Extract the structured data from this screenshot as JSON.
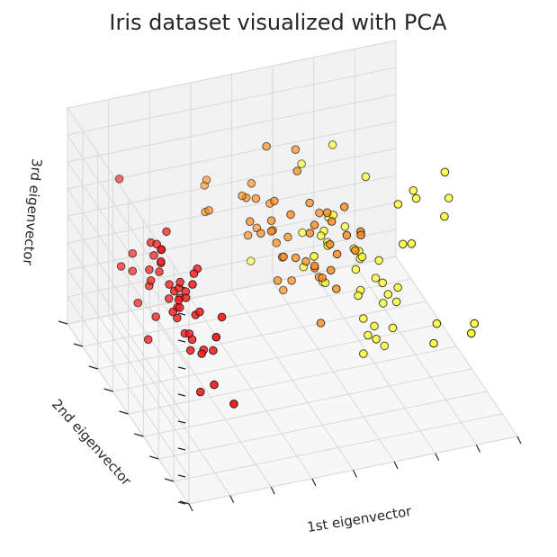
{
  "chart_data": {
    "type": "scatter",
    "projection": "3d",
    "title": "Iris dataset visualized with PCA",
    "xlabel": "1st eigenvector",
    "ylabel": "2nd eigenvector",
    "zlabel": "3rd eigenvector",
    "grid": true,
    "legend": "none",
    "colormap": "autumn",
    "colors": {
      "class_0": "#ff1a1a",
      "class_1": "#ff8c1a",
      "class_2": "#ffff33"
    },
    "tick_labels_shown": false,
    "points_note": "Each point: x=1st eigenvector, y=2nd eigenvector, z=3rd eigenvector, class index 0/1/2",
    "points": [
      {
        "x": -2.68,
        "y": 0.32,
        "z": 0.03,
        "c": 0
      },
      {
        "x": -2.71,
        "y": -0.18,
        "z": 0.21,
        "c": 0
      },
      {
        "x": -2.89,
        "y": -0.14,
        "z": -0.02,
        "c": 0
      },
      {
        "x": -2.75,
        "y": -0.32,
        "z": -0.03,
        "c": 0
      },
      {
        "x": -2.73,
        "y": 0.33,
        "z": -0.09,
        "c": 0
      },
      {
        "x": -2.28,
        "y": 0.74,
        "z": -0.17,
        "c": 0
      },
      {
        "x": -2.82,
        "y": -0.09,
        "z": -0.26,
        "c": 0
      },
      {
        "x": -2.63,
        "y": 0.16,
        "z": 0.02,
        "c": 0
      },
      {
        "x": -2.89,
        "y": -0.58,
        "z": -0.02,
        "c": 0
      },
      {
        "x": -2.67,
        "y": -0.11,
        "z": 0.2,
        "c": 0
      },
      {
        "x": -2.51,
        "y": 0.65,
        "z": 0.08,
        "c": 0
      },
      {
        "x": -2.61,
        "y": 0.01,
        "z": -0.1,
        "c": 0
      },
      {
        "x": -2.79,
        "y": -0.24,
        "z": 0.2,
        "c": 0
      },
      {
        "x": -3.23,
        "y": -0.51,
        "z": -0.06,
        "c": 0
      },
      {
        "x": -2.64,
        "y": 1.18,
        "z": 0.14,
        "c": 0
      },
      {
        "x": -2.38,
        "y": 1.34,
        "z": -0.28,
        "c": 0
      },
      {
        "x": -2.62,
        "y": 0.81,
        "z": -0.14,
        "c": 0
      },
      {
        "x": -2.65,
        "y": 0.31,
        "z": -0.03,
        "c": 0
      },
      {
        "x": -2.2,
        "y": 0.87,
        "z": 0.12,
        "c": 0
      },
      {
        "x": -2.59,
        "y": 0.51,
        "z": -0.25,
        "c": 0
      },
      {
        "x": -2.31,
        "y": 0.39,
        "z": 0.26,
        "c": 0
      },
      {
        "x": -2.54,
        "y": 0.43,
        "z": -0.17,
        "c": 0
      },
      {
        "x": -3.22,
        "y": 0.13,
        "z": -0.3,
        "c": 0
      },
      {
        "x": -2.3,
        "y": 0.1,
        "z": -0.03,
        "c": 0
      },
      {
        "x": -2.36,
        "y": -0.04,
        "z": -0.2,
        "c": 0
      },
      {
        "x": -2.51,
        "y": -0.15,
        "z": 0.3,
        "c": 0
      },
      {
        "x": -2.47,
        "y": 0.13,
        "z": -0.05,
        "c": 0
      },
      {
        "x": -2.56,
        "y": 0.37,
        "z": 0.06,
        "c": 0
      },
      {
        "x": -2.64,
        "y": 0.31,
        "z": 0.15,
        "c": 0
      },
      {
        "x": -2.63,
        "y": -0.2,
        "z": 0.0,
        "c": 0
      },
      {
        "x": -2.59,
        "y": -0.2,
        "z": 0.06,
        "c": 0
      },
      {
        "x": -2.41,
        "y": 0.41,
        "z": 0.24,
        "c": 0
      },
      {
        "x": -2.65,
        "y": 0.81,
        "z": -0.41,
        "c": 0
      },
      {
        "x": -2.6,
        "y": 1.09,
        "z": -0.24,
        "c": 0
      },
      {
        "x": -2.67,
        "y": -0.11,
        "z": 0.2,
        "c": 0
      },
      {
        "x": -2.87,
        "y": 0.08,
        "z": 0.21,
        "c": 0
      },
      {
        "x": -2.63,
        "y": 0.6,
        "z": 0.26,
        "c": 0
      },
      {
        "x": -2.67,
        "y": -0.11,
        "z": 0.2,
        "c": 0
      },
      {
        "x": -2.98,
        "y": -0.49,
        "z": -0.1,
        "c": 0
      },
      {
        "x": -2.59,
        "y": 0.23,
        "z": 0.07,
        "c": 0
      },
      {
        "x": -2.77,
        "y": 0.27,
        "z": -0.07,
        "c": 0
      },
      {
        "x": -2.85,
        "y": -0.94,
        "z": 0.35,
        "c": 0
      },
      {
        "x": -3.0,
        "y": -0.34,
        "z": -0.26,
        "c": 0
      },
      {
        "x": -2.41,
        "y": 0.19,
        "z": -0.28,
        "c": 0
      },
      {
        "x": -2.21,
        "y": 0.44,
        "z": -0.3,
        "c": 0
      },
      {
        "x": -2.71,
        "y": -0.25,
        "z": 0.1,
        "c": 0
      },
      {
        "x": -2.54,
        "y": 0.5,
        "z": -0.18,
        "c": 0
      },
      {
        "x": -2.84,
        "y": -0.23,
        "z": -0.1,
        "c": 0
      },
      {
        "x": -2.54,
        "y": 0.58,
        "z": 0.03,
        "c": 0
      },
      {
        "x": -2.7,
        "y": 0.11,
        "z": 0.05,
        "c": 0
      },
      {
        "x": 1.28,
        "y": 0.69,
        "z": 0.41,
        "c": 1
      },
      {
        "x": 0.93,
        "y": 0.32,
        "z": 0.02,
        "c": 1
      },
      {
        "x": 1.46,
        "y": 0.5,
        "z": 0.34,
        "c": 1
      },
      {
        "x": 0.18,
        "y": -0.83,
        "z": 0.18,
        "c": 1
      },
      {
        "x": 1.09,
        "y": 0.07,
        "z": 0.31,
        "c": 1
      },
      {
        "x": 0.64,
        "y": -0.42,
        "z": -0.05,
        "c": 1
      },
      {
        "x": 1.1,
        "y": 0.28,
        "z": -0.14,
        "c": 1
      },
      {
        "x": -0.75,
        "y": -1.0,
        "z": -0.04,
        "c": 1
      },
      {
        "x": 1.04,
        "y": 0.23,
        "z": 0.32,
        "c": 1
      },
      {
        "x": -0.01,
        "y": -0.72,
        "z": -0.13,
        "c": 1
      },
      {
        "x": -0.51,
        "y": -1.26,
        "z": 0.02,
        "c": 1
      },
      {
        "x": 0.51,
        "y": -0.1,
        "z": -0.05,
        "c": 1
      },
      {
        "x": 0.26,
        "y": -0.55,
        "z": 0.56,
        "c": 1
      },
      {
        "x": 0.98,
        "y": -0.12,
        "z": -0.16,
        "c": 1
      },
      {
        "x": -0.17,
        "y": -0.25,
        "z": 0.1,
        "c": 1
      },
      {
        "x": 0.93,
        "y": 0.47,
        "z": 0.2,
        "c": 1
      },
      {
        "x": 0.66,
        "y": -0.35,
        "z": -0.33,
        "c": 1
      },
      {
        "x": 0.23,
        "y": -0.33,
        "z": 0.27,
        "c": 1
      },
      {
        "x": 0.94,
        "y": -0.54,
        "z": 0.5,
        "c": 1
      },
      {
        "x": 0.04,
        "y": -0.58,
        "z": 0.19,
        "c": 1
      },
      {
        "x": 1.12,
        "y": -0.08,
        "z": -0.22,
        "c": 1
      },
      {
        "x": 0.36,
        "y": -0.07,
        "z": 0.28,
        "c": 1
      },
      {
        "x": 1.3,
        "y": -0.33,
        "z": 0.12,
        "c": 1
      },
      {
        "x": 0.92,
        "y": -0.18,
        "z": 0.28,
        "c": 1
      },
      {
        "x": 0.71,
        "y": 0.15,
        "z": 0.28,
        "c": 1
      },
      {
        "x": 0.9,
        "y": 0.33,
        "z": 0.21,
        "c": 1
      },
      {
        "x": 1.33,
        "y": 0.24,
        "z": 0.41,
        "c": 1
      },
      {
        "x": 1.56,
        "y": 0.27,
        "z": 0.1,
        "c": 1
      },
      {
        "x": 0.81,
        "y": -0.16,
        "z": -0.12,
        "c": 1
      },
      {
        "x": -0.31,
        "y": -0.37,
        "z": 0.14,
        "c": 1
      },
      {
        "x": -0.07,
        "y": -0.7,
        "z": 0.15,
        "c": 1
      },
      {
        "x": -0.19,
        "y": -0.68,
        "z": 0.18,
        "c": 1
      },
      {
        "x": 0.14,
        "y": -0.31,
        "z": 0.07,
        "c": 1
      },
      {
        "x": 1.38,
        "y": -0.42,
        "z": -0.38,
        "c": 1
      },
      {
        "x": 0.59,
        "y": -0.48,
        "z": -0.45,
        "c": 1
      },
      {
        "x": 0.81,
        "y": 0.2,
        "z": -0.4,
        "c": 1
      },
      {
        "x": 1.22,
        "y": 0.41,
        "z": 0.29,
        "c": 1
      },
      {
        "x": 0.81,
        "y": -0.37,
        "z": 0.43,
        "c": 1
      },
      {
        "x": 0.25,
        "y": -0.27,
        "z": -0.27,
        "c": 1
      },
      {
        "x": 0.16,
        "y": -0.68,
        "z": -0.07,
        "c": 1
      },
      {
        "x": 0.46,
        "y": -0.67,
        "z": 0.09,
        "c": 1
      },
      {
        "x": 0.89,
        "y": -0.03,
        "z": -0.1,
        "c": 1
      },
      {
        "x": 0.23,
        "y": -0.4,
        "z": 0.1,
        "c": 1
      },
      {
        "x": -0.71,
        "y": -1.01,
        "z": 0.18,
        "c": 1
      },
      {
        "x": 0.36,
        "y": -0.5,
        "z": -0.02,
        "c": 1
      },
      {
        "x": 0.33,
        "y": -0.21,
        "z": -0.08,
        "c": 1
      },
      {
        "x": 0.38,
        "y": -0.29,
        "z": -0.12,
        "c": 1
      },
      {
        "x": 0.64,
        "y": 0.11,
        "z": 0.21,
        "c": 1
      },
      {
        "x": -0.91,
        "y": -0.75,
        "z": 0.09,
        "c": 1
      },
      {
        "x": 0.3,
        "y": -0.35,
        "z": -0.04,
        "c": 1
      },
      {
        "x": 2.53,
        "y": -0.01,
        "z": -0.76,
        "c": 2
      },
      {
        "x": 1.41,
        "y": -0.57,
        "z": -0.3,
        "c": 2
      },
      {
        "x": 2.62,
        "y": 0.34,
        "z": 0.11,
        "c": 2
      },
      {
        "x": 1.97,
        "y": -0.18,
        "z": -0.11,
        "c": 2
      },
      {
        "x": 2.35,
        "y": -0.04,
        "z": -0.28,
        "c": 2
      },
      {
        "x": 3.4,
        "y": 0.55,
        "z": 0.35,
        "c": 2
      },
      {
        "x": 0.52,
        "y": -1.19,
        "z": -0.55,
        "c": 2
      },
      {
        "x": 2.93,
        "y": 0.35,
        "z": 0.42,
        "c": 2
      },
      {
        "x": 2.32,
        "y": -0.25,
        "z": 0.35,
        "c": 2
      },
      {
        "x": 2.92,
        "y": 0.78,
        "z": -0.42,
        "c": 2
      },
      {
        "x": 1.66,
        "y": 0.24,
        "z": -0.24,
        "c": 2
      },
      {
        "x": 1.8,
        "y": -0.22,
        "z": 0.04,
        "c": 2
      },
      {
        "x": 2.17,
        "y": 0.22,
        "z": -0.03,
        "c": 2
      },
      {
        "x": 1.34,
        "y": -0.78,
        "z": -0.22,
        "c": 2
      },
      {
        "x": 1.59,
        "y": -0.54,
        "z": -0.48,
        "c": 2
      },
      {
        "x": 1.9,
        "y": 0.12,
        "z": -0.47,
        "c": 2
      },
      {
        "x": 1.95,
        "y": 0.04,
        "z": -0.07,
        "c": 2
      },
      {
        "x": 3.49,
        "y": 1.18,
        "z": -0.14,
        "c": 2
      },
      {
        "x": 3.79,
        "y": 0.26,
        "z": 0.33,
        "c": 2
      },
      {
        "x": 1.3,
        "y": -0.76,
        "z": 0.28,
        "c": 2
      },
      {
        "x": 2.43,
        "y": 0.38,
        "z": -0.27,
        "c": 2
      },
      {
        "x": 1.2,
        "y": -0.61,
        "z": -0.38,
        "c": 2
      },
      {
        "x": 3.5,
        "y": 0.46,
        "z": 0.62,
        "c": 2
      },
      {
        "x": 1.39,
        "y": -0.2,
        "z": 0.14,
        "c": 2
      },
      {
        "x": 2.28,
        "y": 0.33,
        "z": -0.23,
        "c": 2
      },
      {
        "x": 2.61,
        "y": 0.56,
        "z": 0.21,
        "c": 2
      },
      {
        "x": 1.26,
        "y": -0.18,
        "z": 0.06,
        "c": 2
      },
      {
        "x": 1.29,
        "y": -0.12,
        "z": -0.02,
        "c": 2
      },
      {
        "x": 2.12,
        "y": -0.21,
        "z": -0.15,
        "c": 2
      },
      {
        "x": 2.39,
        "y": 0.46,
        "z": 0.46,
        "c": 2
      },
      {
        "x": 2.84,
        "y": 0.37,
        "z": 0.49,
        "c": 2
      },
      {
        "x": 3.23,
        "y": 1.37,
        "z": -0.11,
        "c": 2
      },
      {
        "x": 2.16,
        "y": -0.22,
        "z": -0.21,
        "c": 2
      },
      {
        "x": 1.44,
        "y": -0.14,
        "z": 0.18,
        "c": 2
      },
      {
        "x": 1.78,
        "y": -0.5,
        "z": 0.5,
        "c": 2
      },
      {
        "x": 3.08,
        "y": 0.69,
        "z": -0.33,
        "c": 2
      },
      {
        "x": 2.14,
        "y": 0.14,
        "z": -0.53,
        "c": 2
      },
      {
        "x": 1.9,
        "y": 0.05,
        "z": -0.3,
        "c": 2
      },
      {
        "x": 1.17,
        "y": -0.16,
        "z": 0.04,
        "c": 2
      },
      {
        "x": 2.11,
        "y": 0.37,
        "z": -0.12,
        "c": 2
      },
      {
        "x": 2.31,
        "y": 0.18,
        "z": -0.36,
        "c": 2
      },
      {
        "x": 1.92,
        "y": 0.41,
        "z": -0.49,
        "c": 2
      },
      {
        "x": 1.41,
        "y": -0.57,
        "z": -0.3,
        "c": 2
      },
      {
        "x": 2.56,
        "y": 0.28,
        "z": -0.22,
        "c": 2
      },
      {
        "x": 2.42,
        "y": 0.3,
        "z": -0.49,
        "c": 2
      },
      {
        "x": 1.94,
        "y": 0.19,
        "z": -0.56,
        "c": 2
      },
      {
        "x": 1.53,
        "y": -0.37,
        "z": -0.12,
        "c": 2
      },
      {
        "x": 1.76,
        "y": 0.08,
        "z": -0.13,
        "c": 2
      },
      {
        "x": 1.9,
        "y": 0.12,
        "z": -0.72,
        "c": 2
      },
      {
        "x": 1.39,
        "y": -0.28,
        "z": -0.36,
        "c": 2
      }
    ]
  }
}
